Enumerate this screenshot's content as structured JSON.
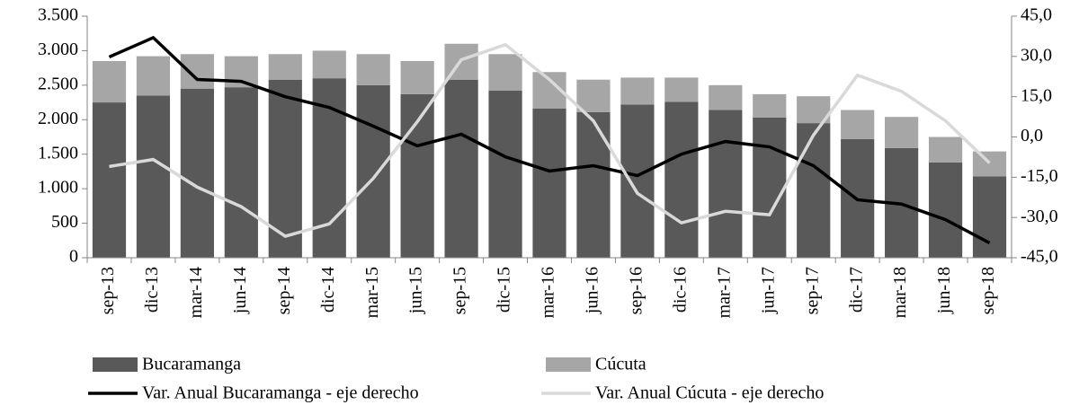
{
  "chart_data": {
    "type": "bar",
    "stacked": true,
    "categories": [
      "sep-13",
      "dic-13",
      "mar-14",
      "jun-14",
      "sep-14",
      "dic-14",
      "mar-15",
      "jun-15",
      "sep-15",
      "dic-15",
      "mar-16",
      "jun-16",
      "sep-16",
      "dic-16",
      "mar-17",
      "jun-17",
      "sep-17",
      "dic-17",
      "mar-18",
      "jun-18",
      "sep-18"
    ],
    "series": [
      {
        "name": "Bucaramanga",
        "type": "bar",
        "color": "#595959",
        "values": [
          2250,
          2350,
          2450,
          2470,
          2580,
          2600,
          2500,
          2370,
          2580,
          2420,
          2160,
          2110,
          2220,
          2260,
          2140,
          2030,
          1950,
          1720,
          1590,
          1380,
          1180
        ]
      },
      {
        "name": "Cúcuta",
        "type": "bar",
        "color": "#a6a6a6",
        "values": [
          600,
          570,
          500,
          450,
          370,
          400,
          450,
          480,
          520,
          530,
          530,
          470,
          390,
          350,
          360,
          340,
          390,
          420,
          450,
          370,
          360
        ]
      },
      {
        "name": "Var. Anual Bucaramanga - eje derecho",
        "type": "line",
        "axis": "y2",
        "color": "#000000",
        "values": [
          29.8,
          37,
          21.4,
          20.7,
          15,
          11,
          4,
          -3.3,
          1,
          -7.4,
          -12.7,
          -10.7,
          -14.4,
          -6.4,
          -1.7,
          -3.7,
          -10.7,
          -23.4,
          -25,
          -30.8,
          -39.5
        ]
      },
      {
        "name": "Var. Anual Cúcuta - eje derecho",
        "type": "line",
        "axis": "y2",
        "color": "#d9d9d9",
        "values": [
          -11,
          -8.4,
          -18.7,
          -26,
          -37,
          -32.4,
          -15.4,
          5.7,
          28.8,
          34.4,
          21.4,
          6,
          -21,
          -32,
          -27.7,
          -29,
          0.7,
          23,
          17,
          6,
          -9.7
        ]
      }
    ],
    "ylim": [
      0,
      3500
    ],
    "yticks": [
      0,
      500,
      {
        "value": 1000,
        "label": "1.000"
      },
      {
        "value": 1500,
        "label": "1.500"
      },
      {
        "value": 2000,
        "label": "2.000"
      },
      {
        "value": 2500,
        "label": "2.500"
      },
      {
        "value": 3000,
        "label": "3.000"
      },
      {
        "value": 3500,
        "label": "3.500"
      }
    ],
    "y2lim": [
      -45,
      45
    ],
    "y2ticks": [
      {
        "value": -45,
        "label": "-45,0"
      },
      {
        "value": -30,
        "label": "-30,0"
      },
      {
        "value": -15,
        "label": "-15,0"
      },
      {
        "value": 0,
        "label": "0,0"
      },
      {
        "value": 15,
        "label": "15,0"
      },
      {
        "value": 30,
        "label": "30,0"
      },
      {
        "value": 45,
        "label": "45,0"
      }
    ],
    "legend": "bottom"
  }
}
